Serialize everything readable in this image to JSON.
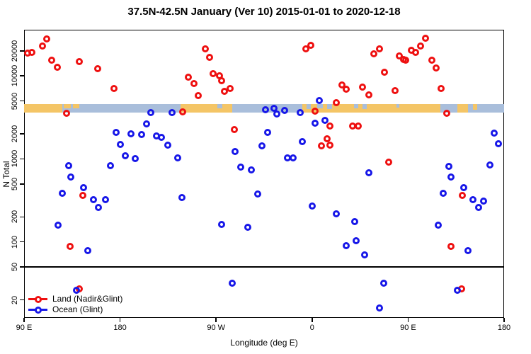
{
  "title": "37.5N-42.5N January (Ver 10)   2015-01-01 to 2020-12-18",
  "axes": {
    "x": {
      "label": "Longitude (deg E)",
      "tick_positions_deg": [
        90,
        180,
        270,
        360,
        450,
        540
      ],
      "tick_labels": [
        "90 E",
        "180",
        "90 W",
        "0",
        "90 E",
        "180"
      ],
      "range_deg": [
        90,
        540
      ],
      "note": "longitude wraps eastward from 90E through the dateline, 0, and back to 180"
    },
    "y": {
      "label": "N Total",
      "scale": "log",
      "tick_values": [
        20,
        50,
        100,
        200,
        500,
        1000,
        2000,
        5000,
        10000,
        20000
      ],
      "range": [
        12,
        36000
      ]
    }
  },
  "legend": {
    "items": [
      {
        "label": "Land (Nadir&Glint)",
        "color": "#ee1010"
      },
      {
        "label": "Ocean (Glint)",
        "color": "#1717e8"
      }
    ]
  },
  "colors": {
    "land_point": "#ee1010",
    "ocean_point": "#1717e8",
    "strip_land": "#f4c566",
    "strip_ocean": "#a9bedb",
    "axis": "#000000"
  },
  "map_strip": {
    "value_band": [
      3500,
      4800
    ],
    "ocean_base_deg": [
      90,
      540
    ],
    "land_segments_deg": [
      {
        "from": 90,
        "to": 126,
        "frac": 1
      },
      {
        "from": 127,
        "to": 134,
        "frac": 0.55
      },
      {
        "from": 136,
        "to": 142,
        "frac": 0.55
      },
      {
        "from": 237,
        "to": 285,
        "frac": 1
      },
      {
        "from": 351,
        "to": 480,
        "frac": 1
      },
      {
        "from": 496,
        "to": 506,
        "frac": 1
      },
      {
        "from": 511,
        "to": 515,
        "frac": 0.7
      }
    ],
    "ocean_specks_deg": [
      {
        "from": 271,
        "to": 276,
        "frac": 0.5
      },
      {
        "from": 355,
        "to": 359,
        "frac": 0.6
      },
      {
        "from": 365,
        "to": 370,
        "frac": 0.5
      },
      {
        "from": 374,
        "to": 379,
        "frac": 0.6
      },
      {
        "from": 399,
        "to": 403,
        "frac": 0.5
      },
      {
        "from": 407,
        "to": 411,
        "frac": 0.6
      },
      {
        "from": 439,
        "to": 442,
        "frac": 0.45
      }
    ]
  },
  "chart_data": {
    "type": "scatter",
    "title": "37.5N-42.5N January (Ver 10)   2015-01-01 to 2020-12-18",
    "xlabel": "Longitude (deg E)",
    "ylabel": "N Total",
    "ylog": true,
    "threshold_line_y": 50,
    "series": [
      {
        "name": "Land (Nadir&Glint)",
        "color": "#ee1010",
        "points": [
          [
            111,
            27900
          ],
          [
            107,
            22900
          ],
          [
            93,
            18900
          ],
          [
            97,
            19200
          ],
          [
            116,
            15500
          ],
          [
            121,
            12700
          ],
          [
            142,
            14900
          ],
          [
            159,
            12200
          ],
          [
            174,
            7060
          ],
          [
            130,
            3550
          ],
          [
            239,
            3690
          ],
          [
            260,
            21200
          ],
          [
            264,
            16700
          ],
          [
            244,
            9660
          ],
          [
            267,
            10700
          ],
          [
            273,
            10000
          ],
          [
            275,
            8760
          ],
          [
            249,
            8090
          ],
          [
            278,
            6520
          ],
          [
            283,
            7060
          ],
          [
            253,
            5780
          ],
          [
            354,
            21200
          ],
          [
            359,
            23400
          ],
          [
            363,
            3760
          ],
          [
            383,
            4760
          ],
          [
            377,
            2480
          ],
          [
            287,
            2250
          ],
          [
            374,
            1740
          ],
          [
            369,
            1430
          ],
          [
            377,
            1460
          ],
          [
            388,
            7790
          ],
          [
            392,
            6920
          ],
          [
            466,
            28500
          ],
          [
            462,
            22900
          ],
          [
            457,
            19200
          ],
          [
            453,
            20400
          ],
          [
            423,
            21200
          ],
          [
            418,
            18500
          ],
          [
            442,
            17400
          ],
          [
            446,
            15800
          ],
          [
            448,
            15500
          ],
          [
            472,
            15500
          ],
          [
            476,
            12500
          ],
          [
            428,
            11100
          ],
          [
            407,
            7350
          ],
          [
            413,
            5930
          ],
          [
            438,
            6660
          ],
          [
            481,
            7060
          ],
          [
            486,
            3550
          ],
          [
            398,
            2480
          ],
          [
            403,
            2480
          ],
          [
            432,
            920
          ],
          [
            145,
            360
          ],
          [
            133,
            89
          ],
          [
            501,
            360
          ],
          [
            490,
            89
          ],
          [
            142,
            27
          ],
          [
            500,
            27
          ]
        ]
      },
      {
        "name": "Ocean (Glint)",
        "color": "#1717e8",
        "points": [
          [
            209,
            3620
          ],
          [
            229,
            3620
          ],
          [
            205,
            2640
          ],
          [
            176,
            2090
          ],
          [
            190,
            2000
          ],
          [
            200,
            1960
          ],
          [
            214,
            1880
          ],
          [
            219,
            1810
          ],
          [
            225,
            1460
          ],
          [
            180,
            1490
          ],
          [
            185,
            1090
          ],
          [
            194,
            1000
          ],
          [
            234,
            1020
          ],
          [
            171,
            830
          ],
          [
            132,
            830
          ],
          [
            134,
            600
          ],
          [
            316,
            3910
          ],
          [
            324,
            4070
          ],
          [
            327,
            3480
          ],
          [
            334,
            3830
          ],
          [
            349,
            3620
          ],
          [
            367,
            5050
          ],
          [
            363,
            2690
          ],
          [
            372,
            2910
          ],
          [
            351,
            1610
          ],
          [
            318,
            2090
          ],
          [
            313,
            1430
          ],
          [
            288,
            1230
          ],
          [
            293,
            800
          ],
          [
            303,
            730
          ],
          [
            337,
            1020
          ],
          [
            342,
            1020
          ],
          [
            531,
            2050
          ],
          [
            535,
            1520
          ],
          [
            527,
            840
          ],
          [
            488,
            810
          ],
          [
            413,
            680
          ],
          [
            146,
            450
          ],
          [
            126,
            385
          ],
          [
            155,
            320
          ],
          [
            166,
            320
          ],
          [
            160,
            260
          ],
          [
            238,
            345
          ],
          [
            122,
            160
          ],
          [
            150,
            79
          ],
          [
            309,
            380
          ],
          [
            360,
            270
          ],
          [
            383,
            220
          ],
          [
            275,
            163
          ],
          [
            300,
            150
          ],
          [
            490,
            600
          ],
          [
            502,
            450
          ],
          [
            483,
            385
          ],
          [
            511,
            323
          ],
          [
            521,
            311
          ],
          [
            516,
            260
          ],
          [
            400,
            176
          ],
          [
            478,
            159
          ],
          [
            392,
            90
          ],
          [
            401,
            103
          ],
          [
            506,
            79
          ],
          [
            409,
            70
          ],
          [
            139,
            26
          ],
          [
            285,
            32
          ],
          [
            427,
            32
          ],
          [
            423,
            16
          ],
          [
            496,
            26
          ]
        ]
      }
    ]
  }
}
